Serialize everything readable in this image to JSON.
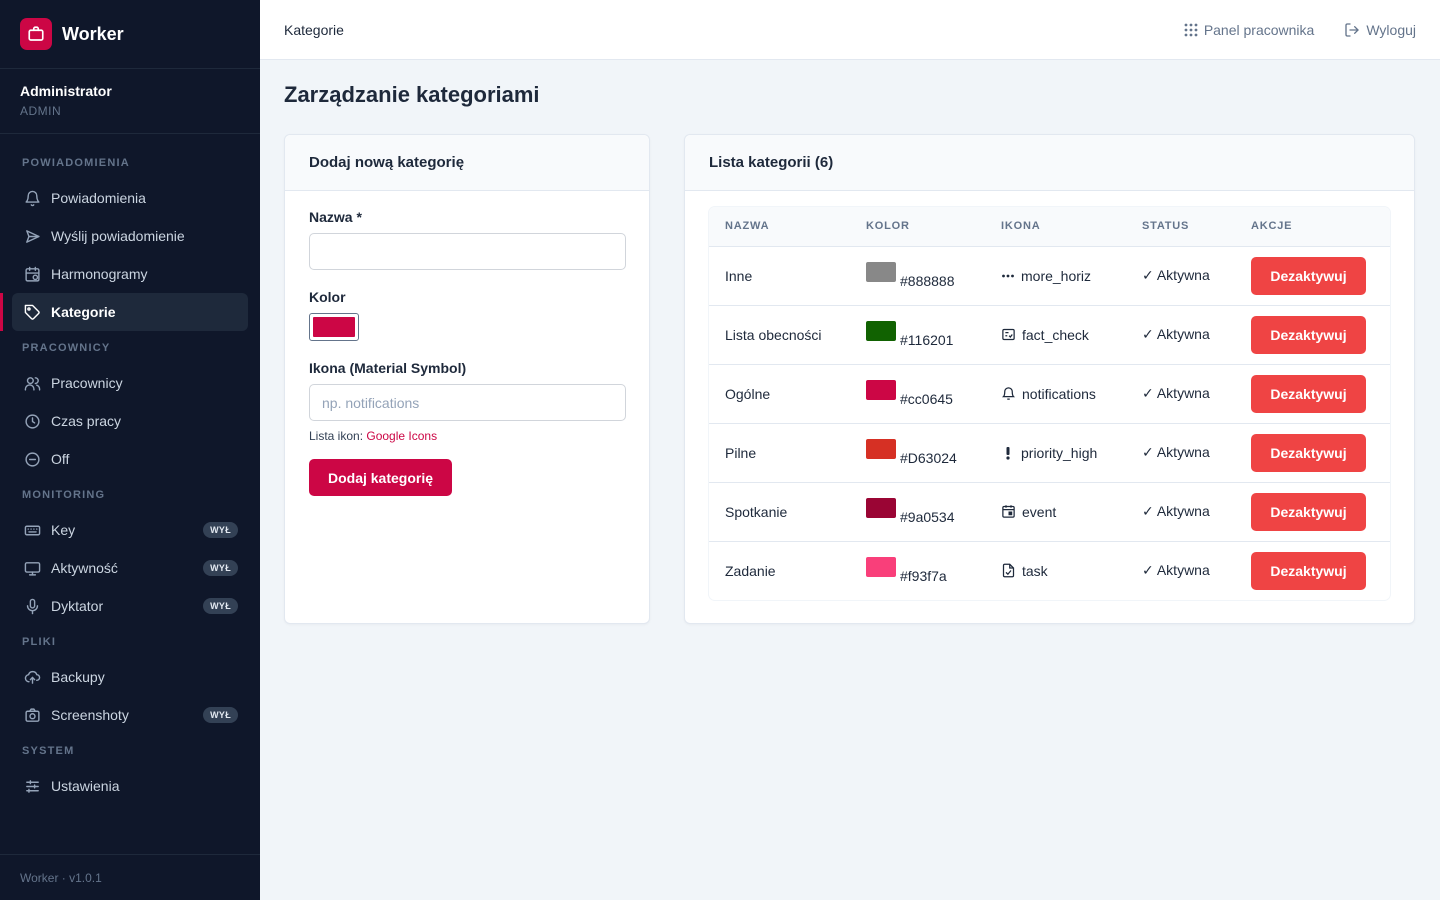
{
  "app": {
    "name": "Worker",
    "version": "Worker · v1.0.1"
  },
  "user": {
    "name": "Administrator",
    "role": "ADMIN"
  },
  "sidebar": {
    "sections": [
      {
        "title": "POWIADOMIENIA",
        "items": [
          {
            "label": "Powiadomienia",
            "icon": "bell-icon"
          },
          {
            "label": "Wyślij powiadomienie",
            "icon": "send-icon"
          },
          {
            "label": "Harmonogramy",
            "icon": "calendar-clock-icon"
          },
          {
            "label": "Kategorie",
            "icon": "tag-icon",
            "active": true
          }
        ]
      },
      {
        "title": "PRACOWNICY",
        "items": [
          {
            "label": "Pracownicy",
            "icon": "users-icon"
          },
          {
            "label": "Czas pracy",
            "icon": "clock-icon"
          },
          {
            "label": "Off",
            "icon": "minus-circle-icon"
          }
        ]
      },
      {
        "title": "MONITORING",
        "items": [
          {
            "label": "Key",
            "icon": "keyboard-icon",
            "badge": "WYŁ"
          },
          {
            "label": "Aktywność",
            "icon": "monitor-icon",
            "badge": "WYŁ"
          },
          {
            "label": "Dyktator",
            "icon": "microphone-icon",
            "badge": "WYŁ"
          }
        ]
      },
      {
        "title": "PLIKI",
        "items": [
          {
            "label": "Backupy",
            "icon": "cloud-upload-icon"
          },
          {
            "label": "Screenshoty",
            "icon": "camera-icon",
            "badge": "WYŁ"
          }
        ]
      },
      {
        "title": "SYSTEM",
        "items": [
          {
            "label": "Ustawienia",
            "icon": "sliders-icon"
          }
        ]
      }
    ]
  },
  "topbar": {
    "title": "Kategorie",
    "panel_link": "Panel pracownika",
    "logout": "Wyloguj"
  },
  "page": {
    "title": "Zarządzanie kategoriami"
  },
  "form": {
    "title": "Dodaj nową kategorię",
    "name_label": "Nazwa *",
    "name_value": "",
    "color_label": "Kolor",
    "color_value": "#cc0645",
    "icon_label": "Ikona (Material Symbol)",
    "icon_placeholder": "np. notifications",
    "hint_prefix": "Lista ikon:",
    "hint_link": "Google Icons",
    "submit": "Dodaj kategorię"
  },
  "list": {
    "title": "Lista kategorii (6)",
    "columns": [
      "NAZWA",
      "KOLOR",
      "IKONA",
      "STATUS",
      "AKCJE"
    ],
    "rows": [
      {
        "name": "Inne",
        "color": "#888888",
        "icon": "more_horiz",
        "status": "✓ Aktywna",
        "action": "Dezaktywuj"
      },
      {
        "name": "Lista obecności",
        "color": "#116201",
        "icon": "fact_check",
        "status": "✓ Aktywna",
        "action": "Dezaktywuj"
      },
      {
        "name": "Ogólne",
        "color": "#cc0645",
        "icon": "notifications",
        "status": "✓ Aktywna",
        "action": "Dezaktywuj"
      },
      {
        "name": "Pilne",
        "color": "#D63024",
        "icon": "priority_high",
        "status": "✓ Aktywna",
        "action": "Dezaktywuj"
      },
      {
        "name": "Spotkanie",
        "color": "#9a0534",
        "icon": "event",
        "status": "✓ Aktywna",
        "action": "Dezaktywuj"
      },
      {
        "name": "Zadanie",
        "color": "#f93f7a",
        "icon": "task",
        "status": "✓ Aktywna",
        "action": "Dezaktywuj"
      }
    ]
  },
  "colors": {
    "brand": "#cc0645",
    "sidebar_bg": "#0f172a",
    "danger": "#ef4444"
  }
}
